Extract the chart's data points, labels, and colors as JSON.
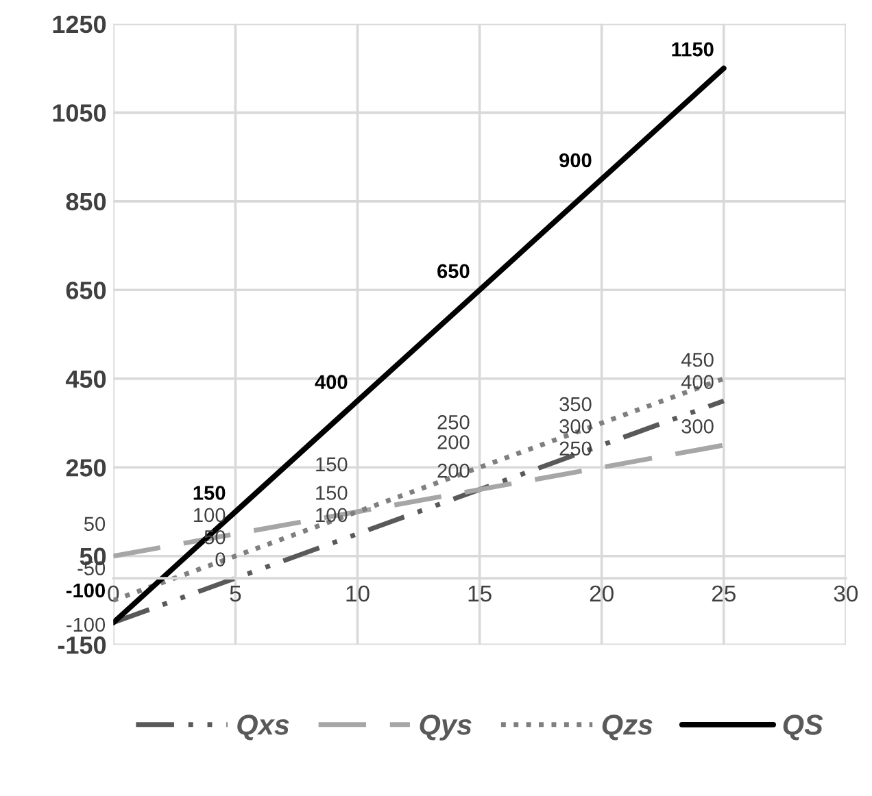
{
  "chart_data": {
    "type": "line",
    "x": [
      0,
      5,
      10,
      15,
      20,
      25
    ],
    "series": [
      {
        "name": "Qxs",
        "color": "#595959",
        "line_style": "dashed",
        "values": [
          -100,
          0,
          100,
          200,
          300,
          400
        ]
      },
      {
        "name": "Qys",
        "color": "#a6a6a6",
        "line_style": "dashed",
        "values": [
          50,
          100,
          150,
          200,
          250,
          300
        ]
      },
      {
        "name": "Qzs",
        "color": "#7f7f7f",
        "line_style": "dotted",
        "values": [
          -50,
          50,
          150,
          250,
          350,
          450
        ]
      },
      {
        "name": "QS",
        "color": "#000000",
        "line_style": "solid",
        "values": [
          -100,
          150,
          400,
          650,
          900,
          1150
        ]
      }
    ],
    "xlim": [
      0,
      30
    ],
    "xticks": [
      0,
      5,
      10,
      15,
      20,
      25,
      30
    ],
    "ylim": [
      -150,
      1250
    ],
    "yticks": [
      -150,
      50,
      250,
      450,
      650,
      850,
      1050,
      1250
    ],
    "grid": true,
    "legend": "bottom",
    "marker": "none",
    "data_labels": true
  }
}
